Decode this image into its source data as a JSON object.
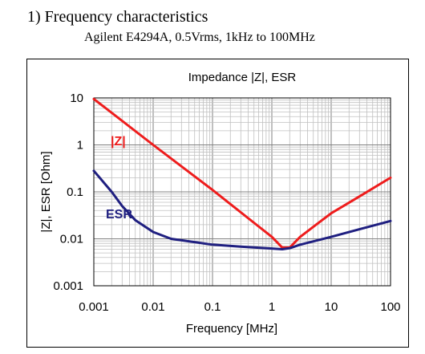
{
  "header": {
    "title": "1) Frequency characteristics",
    "subtitle": "Agilent E4294A, 0.5Vrms, 1kHz to 100MHz"
  },
  "colors": {
    "z": "#ee1c1c",
    "esr": "#1f1f80",
    "grid": "#808080",
    "minor_grid": "#c0c0c0"
  },
  "chart_data": {
    "type": "line",
    "title": "Impedance |Z|,  ESR",
    "xlabel": "Frequency [MHz]",
    "ylabel": "|Z|, ESR [Ohm]",
    "x_scale": "log",
    "y_scale": "log",
    "xlim": [
      0.001,
      100
    ],
    "ylim": [
      0.001,
      10
    ],
    "grid": true,
    "x_ticks": [
      "0.001",
      "0.01",
      "0.1",
      "1",
      "10",
      "100"
    ],
    "y_ticks": [
      "10",
      "1",
      "0.1",
      "0.01",
      "0.001"
    ],
    "series": [
      {
        "name": "|Z|",
        "color": "#ee1c1c",
        "x": [
          0.001,
          0.01,
          0.1,
          0.5,
          1,
          1.5,
          2,
          3,
          5,
          10,
          30,
          100
        ],
        "y": [
          9.5,
          1.0,
          0.11,
          0.022,
          0.011,
          0.0065,
          0.0065,
          0.011,
          0.018,
          0.035,
          0.08,
          0.2
        ]
      },
      {
        "name": "ESR",
        "color": "#1f1f80",
        "x": [
          0.001,
          0.002,
          0.003,
          0.005,
          0.01,
          0.02,
          0.05,
          0.1,
          0.3,
          1,
          1.5,
          2,
          3,
          5,
          10,
          30,
          100
        ],
        "y": [
          0.28,
          0.1,
          0.05,
          0.025,
          0.014,
          0.01,
          0.0085,
          0.0075,
          0.0068,
          0.0062,
          0.006,
          0.0063,
          0.0075,
          0.0088,
          0.011,
          0.016,
          0.024
        ]
      }
    ]
  }
}
